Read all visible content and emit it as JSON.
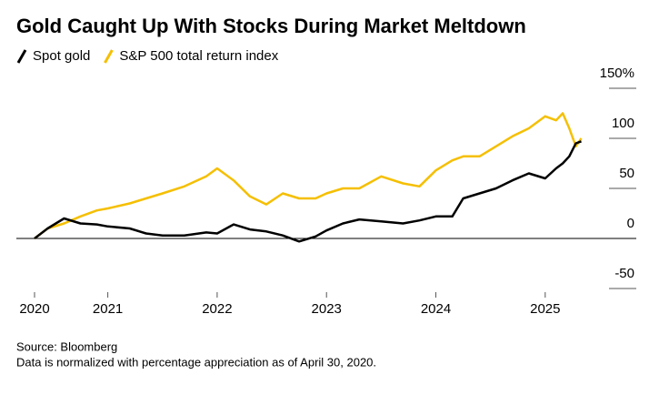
{
  "chart_data": {
    "type": "line",
    "title": "Gold Caught Up With Stocks During Market Meltdown",
    "source": "Source: Bloomberg",
    "note": "Data is normalized with percentage appreciation as of April 30, 2020.",
    "x": [
      2020.33,
      2020.45,
      2020.6,
      2020.75,
      2020.9,
      2021.0,
      2021.2,
      2021.35,
      2021.5,
      2021.7,
      2021.9,
      2022.0,
      2022.15,
      2022.3,
      2022.45,
      2022.6,
      2022.75,
      2022.9,
      2023.0,
      2023.15,
      2023.3,
      2023.5,
      2023.7,
      2023.85,
      2024.0,
      2024.15,
      2024.25,
      2024.4,
      2024.55,
      2024.7,
      2024.85,
      2025.0,
      2025.1,
      2025.16,
      2025.22,
      2025.28,
      2025.33
    ],
    "series": [
      {
        "name": "Spot gold",
        "color": "#000000",
        "values": [
          0,
          10,
          20,
          15,
          14,
          12,
          10,
          5,
          3,
          3,
          6,
          5,
          14,
          9,
          7,
          3,
          -3,
          2,
          8,
          15,
          19,
          17,
          15,
          18,
          22,
          22,
          40,
          45,
          50,
          58,
          65,
          60,
          70,
          75,
          82,
          95,
          97
        ]
      },
      {
        "name": "S&P 500 total return index",
        "color": "#f5bf00",
        "values": [
          0,
          10,
          15,
          22,
          28,
          30,
          35,
          40,
          45,
          52,
          62,
          70,
          58,
          42,
          34,
          45,
          40,
          40,
          45,
          50,
          50,
          62,
          55,
          52,
          68,
          78,
          82,
          82,
          92,
          102,
          110,
          122,
          118,
          125,
          110,
          92,
          100
        ]
      }
    ],
    "xlim": [
      2020.33,
      2025.6
    ],
    "xticks": [
      {
        "value": 2020.33,
        "label": "2020"
      },
      2021,
      2022,
      2023,
      2024,
      2025
    ],
    "ylim": [
      -50,
      150
    ],
    "yticks": [
      -50,
      0,
      50,
      100,
      {
        "value": 150,
        "label": "150%"
      }
    ],
    "legend": "top-left"
  }
}
